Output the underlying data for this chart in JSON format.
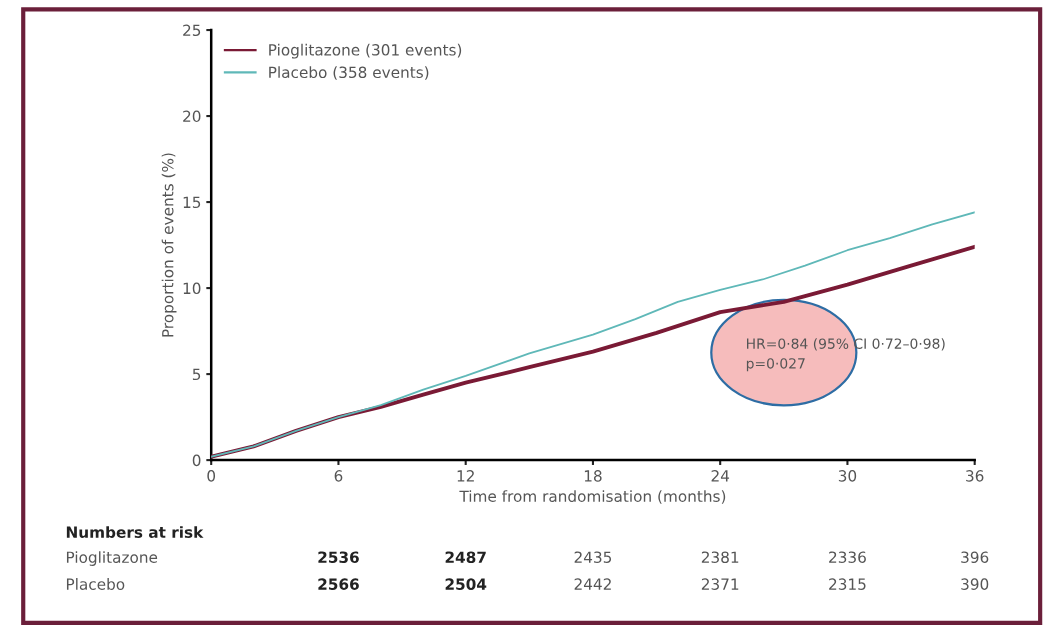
{
  "chart_data": {
    "type": "line",
    "xlabel": "Time from randomisation (months)",
    "ylabel": "Proportion of events (%)",
    "xlim": [
      0,
      36
    ],
    "xticks": [
      0,
      6,
      12,
      18,
      24,
      30,
      36
    ],
    "ylim": [
      0,
      25
    ],
    "yticks": [
      0,
      5,
      10,
      15,
      20,
      25
    ],
    "grid": false,
    "legend": "top left",
    "line_style": "solid",
    "marker": "none",
    "series": [
      {
        "name": "Pioglitazone (301 events)",
        "color": "#7a1a35",
        "x": [
          0,
          2,
          4,
          6,
          8,
          10,
          12,
          15,
          18,
          21,
          24,
          27,
          30,
          33,
          36
        ],
        "values": [
          0.2,
          0.8,
          1.7,
          2.5,
          3.1,
          3.8,
          4.5,
          5.4,
          6.3,
          7.4,
          8.6,
          9.2,
          10.2,
          11.3,
          12.4
        ]
      },
      {
        "name": "Placebo (358 events)",
        "color": "#5fb8b8",
        "x": [
          0,
          2,
          4,
          6,
          8,
          10,
          12,
          15,
          18,
          20,
          22,
          24,
          26,
          28,
          30,
          32,
          34,
          36
        ],
        "values": [
          0.2,
          0.8,
          1.7,
          2.5,
          3.2,
          4.1,
          4.9,
          6.2,
          7.3,
          8.2,
          9.2,
          9.9,
          10.5,
          11.3,
          12.2,
          12.9,
          13.7,
          14.4
        ]
      }
    ],
    "annotations": [
      "HR=0·84 (95% CI 0·72–0·98)\np=0·027",
      "Numbers at risk",
      "Pioglitazone",
      "2536",
      "2487",
      "2435",
      "2381",
      "2336",
      "396",
      "Placebo",
      "2566",
      "2504",
      "2442",
      "2371",
      "2315",
      "390"
    ]
  }
}
